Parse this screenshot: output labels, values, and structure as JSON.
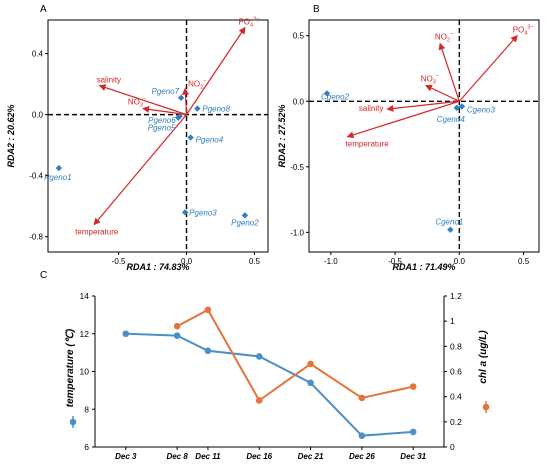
{
  "panels": {
    "a": {
      "label": "A"
    },
    "b": {
      "label": "B"
    },
    "c": {
      "label": "C"
    }
  },
  "colors": {
    "arrow": "#d62728",
    "point": "#2f7fc1",
    "temperature_series": "#4a90c8",
    "chla_series": "#e4743a",
    "axis": "#000000"
  },
  "chart_data": [
    {
      "type": "scatter",
      "subtype": "rda-biplot",
      "xlabel": "RDA1 : 74.83%",
      "ylabel": "RDA2 : 20.62%",
      "xlim": [
        -1.02,
        0.6
      ],
      "ylim": [
        -0.9,
        0.62
      ],
      "xticks": [
        {
          "v": -0.5,
          "label": "-0.5"
        },
        {
          "v": 0.0,
          "label": "0.0"
        },
        {
          "v": 0.5,
          "label": "0.5"
        }
      ],
      "yticks": [
        {
          "v": 0.4,
          "label": "0.4"
        },
        {
          "v": 0.0,
          "label": "0.0"
        },
        {
          "v": -0.4,
          "label": "-0.4"
        },
        {
          "v": -0.8,
          "label": "-0.8"
        }
      ],
      "points": [
        {
          "name": "Pgeno1",
          "x": -0.94,
          "y": -0.35
        },
        {
          "name": "Pgeno2",
          "x": 0.43,
          "y": -0.66
        },
        {
          "name": "Pgeno3",
          "x": -0.01,
          "y": -0.64
        },
        {
          "name": "Pgeno4",
          "x": 0.03,
          "y": -0.15
        },
        {
          "name": "Pgeno5",
          "x": -0.06,
          "y": -0.02
        },
        {
          "name": "Pgeno6",
          "x": -0.05,
          "y": -0.01
        },
        {
          "name": "Pgeno7",
          "x": -0.04,
          "y": 0.11
        },
        {
          "name": "Pgeno8",
          "x": 0.08,
          "y": 0.04
        }
      ],
      "arrows": [
        {
          "name": "PO4",
          "label": "PO",
          "sub": "4",
          "sup": "3−",
          "x": 0.43,
          "y": 0.57
        },
        {
          "name": "salinity",
          "label": "salinity",
          "x": -0.64,
          "y": 0.19
        },
        {
          "name": "NO2",
          "label": "NO",
          "sub": "2",
          "sup": "−",
          "x": -0.01,
          "y": 0.17
        },
        {
          "name": "NO3",
          "label": "NO",
          "sub": "3",
          "sup": "−",
          "x": -0.32,
          "y": 0.04
        },
        {
          "name": "temperature",
          "label": "temperature",
          "x": -0.68,
          "y": -0.72
        }
      ]
    },
    {
      "type": "scatter",
      "subtype": "rda-biplot",
      "xlabel": "RDA1 : 71.49%",
      "ylabel": "RDA2 : 27.52%",
      "xlim": [
        -1.17,
        0.62
      ],
      "ylim": [
        -1.15,
        0.62
      ],
      "xticks": [
        {
          "v": -1.0,
          "label": "-1.0"
        },
        {
          "v": -0.5,
          "label": "-0.5"
        },
        {
          "v": 0.0,
          "label": "0.0"
        },
        {
          "v": 0.5,
          "label": "0.5"
        }
      ],
      "yticks": [
        {
          "v": 0.5,
          "label": "0.5"
        },
        {
          "v": 0.0,
          "label": "0.0"
        },
        {
          "v": -0.5,
          "label": "-0.5"
        },
        {
          "v": -1.0,
          "label": "-1.0"
        }
      ],
      "points": [
        {
          "name": "Cgeno1",
          "x": -0.07,
          "y": -0.98
        },
        {
          "name": "Cgeno2",
          "x": -1.03,
          "y": 0.06
        },
        {
          "name": "Cgeno3",
          "x": 0.02,
          "y": -0.04
        },
        {
          "name": "Cgeno4",
          "x": -0.02,
          "y": -0.05
        }
      ],
      "arrows": [
        {
          "name": "PO4",
          "label": "PO",
          "sub": "4",
          "sup": "3−",
          "x": 0.45,
          "y": 0.5
        },
        {
          "name": "NO2",
          "label": "NO",
          "sub": "2",
          "sup": "−",
          "x": -0.15,
          "y": 0.44
        },
        {
          "name": "NO3",
          "label": "NO",
          "sub": "3",
          "sup": "−",
          "x": -0.26,
          "y": 0.12
        },
        {
          "name": "salinity",
          "label": "salinity",
          "x": -0.56,
          "y": -0.06
        },
        {
          "name": "temperature",
          "label": "temperature",
          "x": -0.87,
          "y": -0.27
        }
      ]
    },
    {
      "type": "line",
      "categories": [
        "Dec 3",
        "Dec 8",
        "Dec 11",
        "Dec 16",
        "Dec 21",
        "Dec 26",
        "Dec 31"
      ],
      "xticks": [
        {
          "label": "Dec 3",
          "day": 3
        },
        {
          "label": "Dec 8",
          "day": 8
        },
        {
          "label": "Dec 11",
          "day": 11
        },
        {
          "label": "Dec 16",
          "day": 16
        },
        {
          "label": "Dec 21",
          "day": 21
        },
        {
          "label": "Dec 26",
          "day": 26
        },
        {
          "label": "Dec 31",
          "day": 31
        }
      ],
      "series": [
        {
          "name": "temperature (℃)",
          "axis": "left",
          "x": [
            3,
            8,
            11,
            16,
            21,
            26,
            31
          ],
          "values": [
            12.0,
            11.9,
            11.1,
            10.8,
            9.4,
            6.6,
            6.8
          ]
        },
        {
          "name": "chl a (ug/L)",
          "axis": "right",
          "x": [
            8,
            11,
            16,
            21,
            26,
            31
          ],
          "values": [
            0.96,
            1.09,
            0.37,
            0.66,
            0.39,
            0.48
          ]
        }
      ],
      "ylim_left": [
        6,
        14
      ],
      "yticks_left": [
        "14",
        "12",
        "10",
        "8",
        "6"
      ],
      "ylim_right": [
        0,
        1.2
      ],
      "yticks_right": [
        "1.2",
        "1",
        "0.8",
        "0.6",
        "0.4",
        "0.2",
        "0"
      ],
      "ylabel_left": "temperature (℃)",
      "ylabel_right": "chl a (ug/L)"
    }
  ]
}
